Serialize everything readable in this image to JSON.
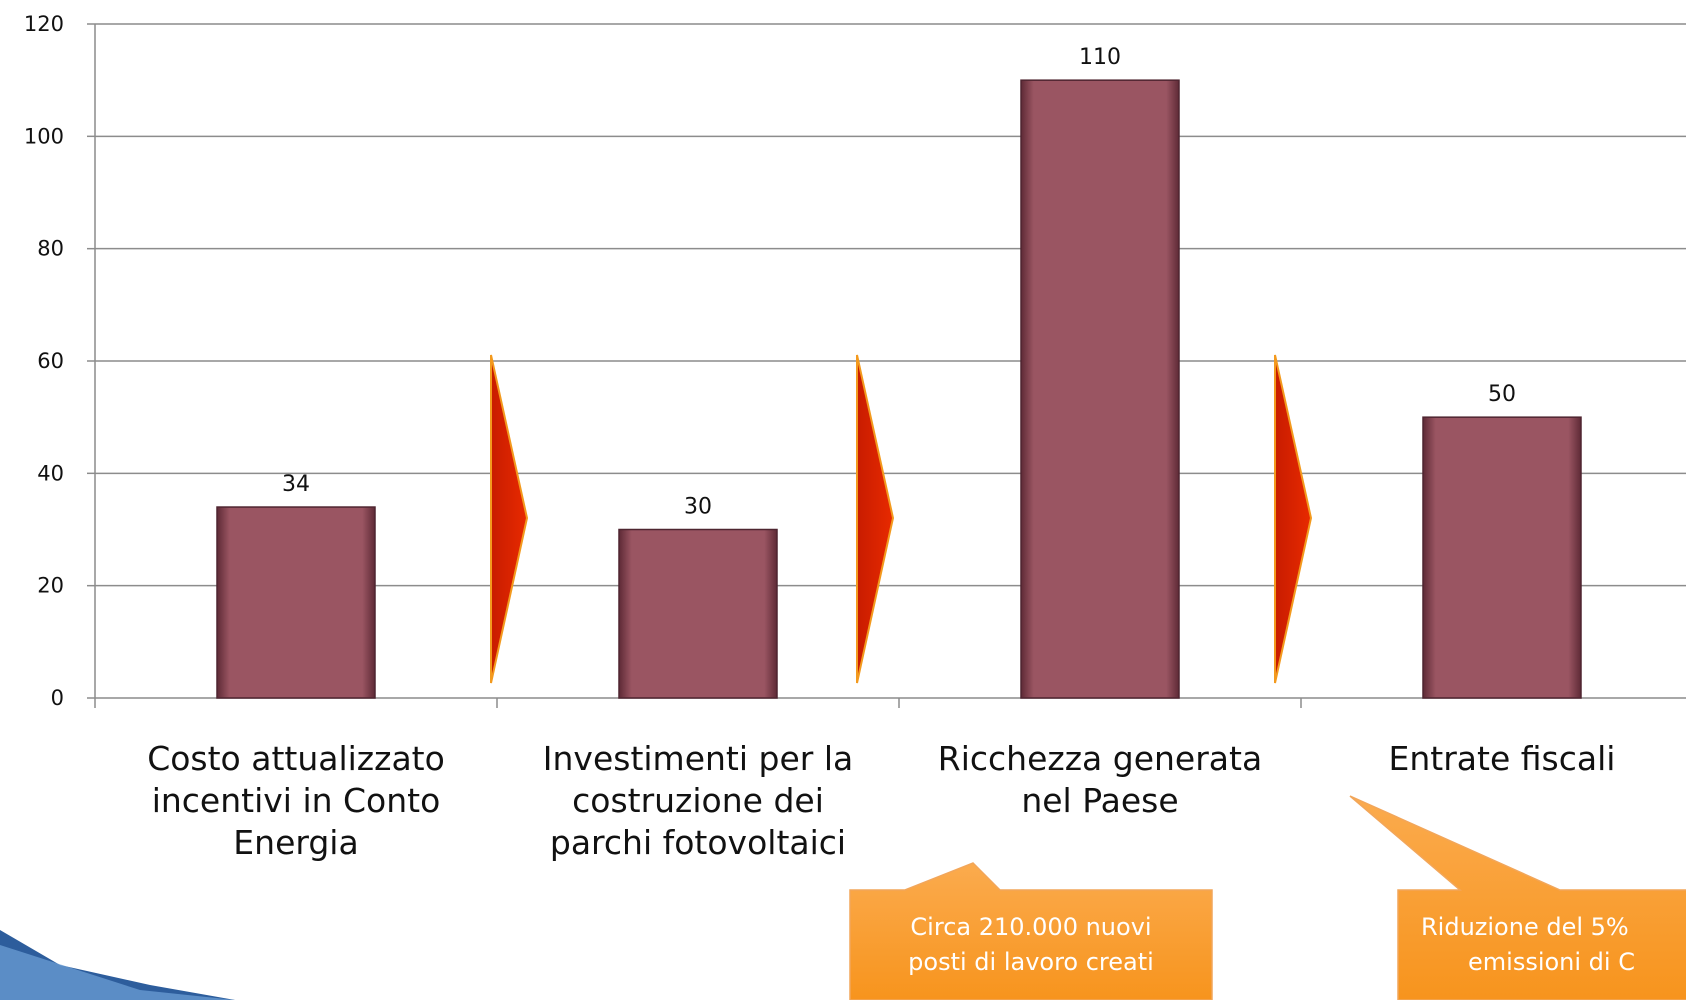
{
  "chart_data": {
    "type": "bar",
    "categories": [
      "Costo attualizzato incentivi in Conto Energia",
      "Investimenti per la costruzione dei parchi fotovoltaici",
      "Ricchezza generata nel Paese",
      "Entrate fiscali"
    ],
    "values": [
      34,
      30,
      110,
      50
    ],
    "color": "#9a5562",
    "ylim": [
      0,
      120
    ],
    "yticks": [
      0,
      20,
      40,
      60,
      80,
      100,
      120
    ],
    "grid": true,
    "annotations": [
      [
        "Circa 210.000 nuovi",
        "posti di lavoro creati"
      ],
      [
        "Riduzione del 5%",
        "emissioni di C"
      ]
    ]
  }
}
